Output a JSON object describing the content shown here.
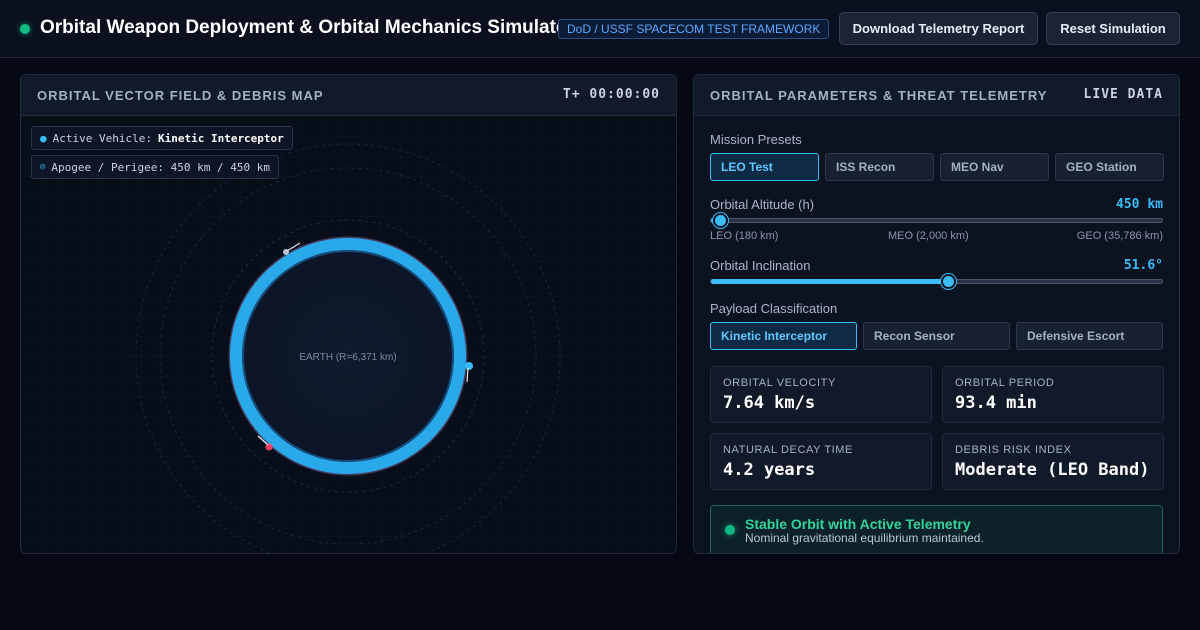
{
  "header": {
    "title": "Orbital Weapon Deployment & Orbital Mechanics Simulator",
    "badge": "DoD / USSF SPACECOM TEST FRAMEWORK",
    "download_label": "Download Telemetry Report",
    "reset_label": "Reset Simulation",
    "status_color": "#10b981"
  },
  "map_panel": {
    "title": "ORBITAL VECTOR FIELD & DEBRIS MAP",
    "timer": "T+ 00:00:00",
    "vehicle_label": "Active Vehicle:",
    "vehicle_name": "Kinetic Interceptor",
    "apogee_label": "Apogee / Perigee: 450 km / 450 km",
    "earth_label": "EARTH (R=6,371 km)",
    "accent_color": "#38bdf8"
  },
  "telemetry_panel": {
    "title": "ORBITAL PARAMETERS & THREAT TELEMETRY",
    "live_label": "LIVE DATA",
    "presets_label": "Mission Presets",
    "presets": [
      {
        "label": "LEO Test",
        "active": true
      },
      {
        "label": "ISS Recon",
        "active": false
      },
      {
        "label": "MEO Nav",
        "active": false
      },
      {
        "label": "GEO Station",
        "active": false
      }
    ],
    "altitude": {
      "label": "Orbital Altitude (h)",
      "value_text": "450 km",
      "fraction": 0.02,
      "scale": [
        "LEO (180 km)",
        "MEO (2,000 km)",
        "GEO (35,786 km)"
      ]
    },
    "inclination": {
      "label": "Orbital Inclination",
      "value_text": "51.6°",
      "fraction": 0.525
    },
    "payload_label": "Payload Classification",
    "payloads": [
      {
        "label": "Kinetic Interceptor",
        "active": true
      },
      {
        "label": "Recon Sensor",
        "active": false
      },
      {
        "label": "Defensive Escort",
        "active": false
      }
    ],
    "stats": [
      {
        "label": "ORBITAL VELOCITY",
        "value": "7.64 km/s"
      },
      {
        "label": "ORBITAL PERIOD",
        "value": "93.4 min"
      },
      {
        "label": "NATURAL DECAY TIME",
        "value": "4.2 years"
      },
      {
        "label": "DEBRIS RISK INDEX",
        "value": "Moderate (LEO Band)"
      }
    ],
    "status": {
      "title": "Stable Orbit with Active Telemetry",
      "subtitle": "Nominal gravitational equilibrium maintained."
    }
  }
}
